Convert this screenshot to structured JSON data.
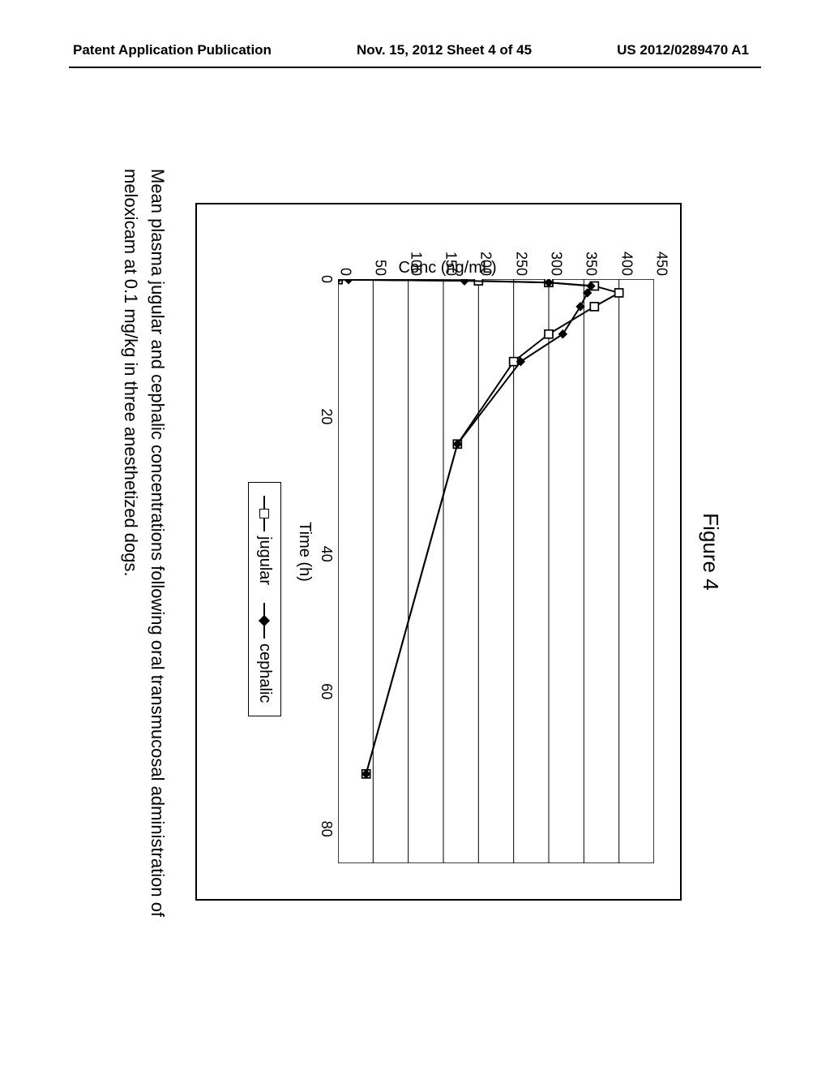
{
  "header": {
    "left": "Patent Application Publication",
    "center": "Nov. 15, 2012  Sheet 4 of 45",
    "right": "US 2012/0289470 A1"
  },
  "figure": {
    "title": "Figure 4",
    "chart": {
      "type": "line",
      "ylabel": "Conc (ng/mL)",
      "xlabel": "Time (h)",
      "ylim": [
        0,
        450
      ],
      "ytick_step": 50,
      "yticks": [
        0,
        50,
        100,
        150,
        200,
        250,
        300,
        350,
        400,
        450
      ],
      "xlim": [
        0,
        85
      ],
      "xticks": [
        0,
        20,
        40,
        60,
        80
      ],
      "gridlines": true,
      "grid_color": "#000000",
      "grid_width": 1,
      "background_color": "#ffffff",
      "series": [
        {
          "name": "jugular",
          "marker": "open-square",
          "marker_size": 10,
          "marker_fill": "#ffffff",
          "marker_stroke": "#000000",
          "line_color": "#000000",
          "line_width": 2,
          "x": [
            0,
            0.083,
            0.25,
            0.5,
            1,
            2,
            4,
            8,
            12,
            24,
            72
          ],
          "y": [
            0,
            0,
            200,
            300,
            365,
            400,
            365,
            300,
            250,
            170,
            40
          ]
        },
        {
          "name": "cephalic",
          "marker": "filled-diamond",
          "marker_size": 10,
          "marker_fill": "#000000",
          "marker_stroke": "#000000",
          "line_color": "#000000",
          "line_width": 2,
          "x": [
            0,
            0.083,
            0.25,
            0.5,
            1,
            2,
            4,
            8,
            12,
            24,
            72
          ],
          "y": [
            0,
            15,
            180,
            300,
            360,
            355,
            345,
            320,
            260,
            170,
            40
          ]
        }
      ],
      "label_fontsize": 20,
      "tick_fontsize": 18
    },
    "legend": {
      "items": [
        {
          "marker": "open-square",
          "label": "jugular"
        },
        {
          "marker": "filled-diamond",
          "label": "cephalic"
        }
      ]
    },
    "caption": "Mean plasma jugular and cephalic concentrations following oral transmucosal administration of meloxicam at 0.1 mg/kg in three anesthetized dogs."
  }
}
